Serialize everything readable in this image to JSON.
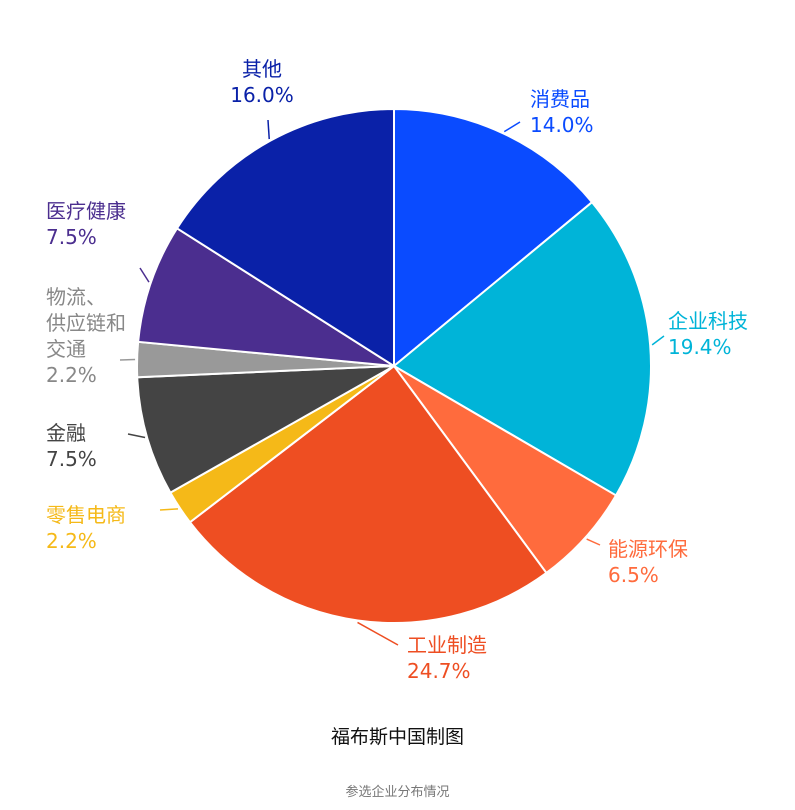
{
  "chart_data": {
    "type": "pie",
    "slices": [
      {
        "name": "消费品",
        "value": 14.0,
        "label": "14.0%",
        "color": "#0A4BFF"
      },
      {
        "name": "企业科技",
        "value": 19.4,
        "label": "19.4%",
        "color": "#00B4D8"
      },
      {
        "name": "能源环保",
        "value": 6.5,
        "label": "6.5%",
        "color": "#FF6B3D"
      },
      {
        "name": "工业制造",
        "value": 24.7,
        "label": "24.7%",
        "color": "#EE4E22"
      },
      {
        "name": "零售电商",
        "value": 2.2,
        "label": "2.2%",
        "color": "#F5B918"
      },
      {
        "name": "金融",
        "value": 7.5,
        "label": "7.5%",
        "color": "#444444"
      },
      {
        "name": "物流、供应链和交通",
        "value": 2.2,
        "label": "2.2%",
        "color": "#999999"
      },
      {
        "name": "医疗健康",
        "value": 7.5,
        "label": "7.5%",
        "color": "#4B2E8F"
      },
      {
        "name": "其他",
        "value": 16.0,
        "label": "16.0%",
        "color": "#0A21A8"
      }
    ],
    "source": "福布斯中国制图",
    "subtitle": "参选企业分布情况"
  }
}
